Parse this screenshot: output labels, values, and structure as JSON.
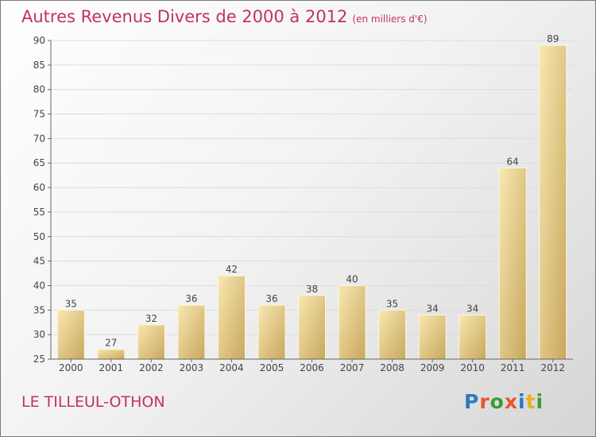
{
  "header": {
    "title": "Autres Revenus Divers de 2000 à 2012",
    "unit": "(en milliers d'€)"
  },
  "footer": {
    "location": "LE TILLEUL-OTHON",
    "logo_text": "Proxiti"
  },
  "colors": {
    "title": "#c22f6b",
    "bar_light": "#f6e3a6",
    "bar_dark": "#c9a95f"
  },
  "chart_data": {
    "type": "bar",
    "title": "Autres Revenus Divers de 2000 à 2012",
    "subtitle": "(en milliers d'€)",
    "xlabel": "",
    "ylabel": "",
    "categories": [
      "2000",
      "2001",
      "2002",
      "2003",
      "2004",
      "2005",
      "2006",
      "2007",
      "2008",
      "2009",
      "2010",
      "2011",
      "2012"
    ],
    "values": [
      35,
      27,
      32,
      36,
      42,
      36,
      38,
      40,
      35,
      34,
      34,
      64,
      89
    ],
    "ylim": [
      25,
      90
    ],
    "yticks": [
      25,
      30,
      35,
      40,
      45,
      50,
      55,
      60,
      65,
      70,
      75,
      80,
      85,
      90
    ],
    "grid": true,
    "data_labels": true
  }
}
